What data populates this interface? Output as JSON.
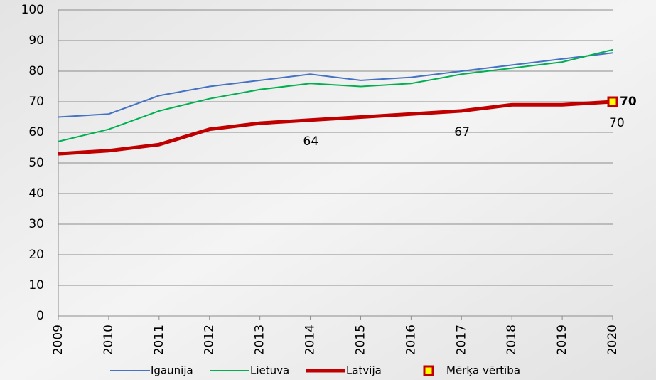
{
  "chart_data": {
    "type": "line",
    "categories": [
      "2009",
      "2010",
      "2011",
      "2012",
      "2013",
      "2014",
      "2015",
      "2016",
      "2017",
      "2018",
      "2019",
      "2020"
    ],
    "series": [
      {
        "name": "Igaunija",
        "color": "#4472c4",
        "width": 2,
        "values": [
          65,
          66,
          72,
          75,
          77,
          79,
          77,
          78,
          80,
          82,
          84,
          86
        ]
      },
      {
        "name": "Lietuva",
        "color": "#00b050",
        "width": 2,
        "values": [
          57,
          61,
          67,
          71,
          74,
          76,
          75,
          76,
          79,
          81,
          83,
          87
        ]
      },
      {
        "name": "Latvija",
        "color": "#c00000",
        "width": 5,
        "values": [
          53,
          54,
          56,
          61,
          63,
          64,
          65,
          66,
          67,
          69,
          69,
          70
        ],
        "label_points": [
          5,
          8,
          11
        ]
      },
      {
        "name": "Mērķa vērtība",
        "color": "#ffff00",
        "marker_edge": "#c00000",
        "marker": "square",
        "values": [
          null,
          null,
          null,
          null,
          null,
          null,
          null,
          null,
          null,
          null,
          null,
          70
        ],
        "label_points": [
          11
        ]
      }
    ],
    "ylim": [
      0,
      100
    ],
    "yticks": [
      0,
      10,
      20,
      30,
      40,
      50,
      60,
      70,
      80,
      90,
      100
    ],
    "grid": true,
    "legend": "bottom"
  }
}
